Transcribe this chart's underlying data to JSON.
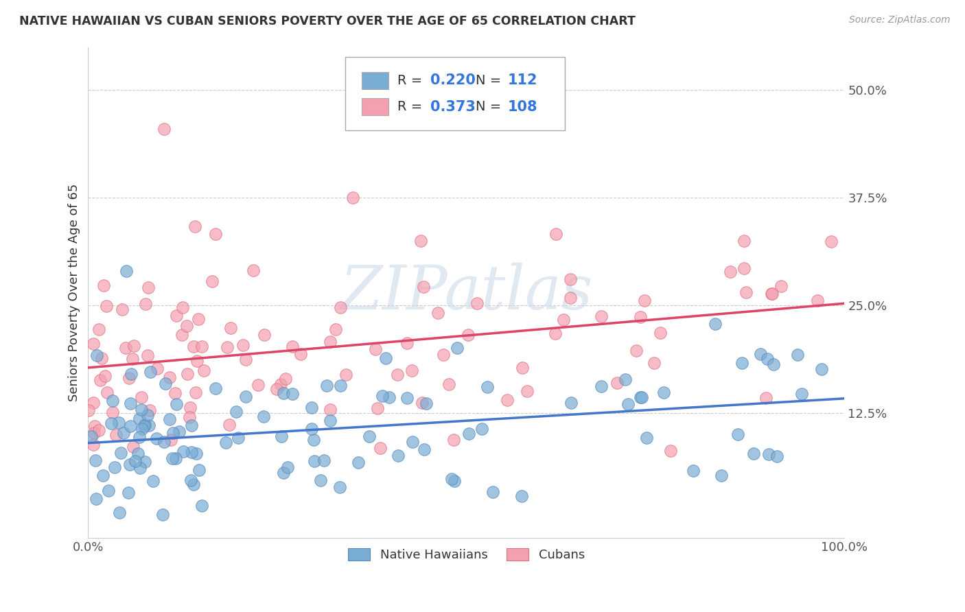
{
  "title": "NATIVE HAWAIIAN VS CUBAN SENIORS POVERTY OVER THE AGE OF 65 CORRELATION CHART",
  "source": "Source: ZipAtlas.com",
  "ylabel": "Seniors Poverty Over the Age of 65",
  "blue_label": "Native Hawaiians",
  "pink_label": "Cubans",
  "blue_R": 0.22,
  "blue_N": 112,
  "pink_R": 0.373,
  "pink_N": 108,
  "xlim": [
    0,
    100
  ],
  "ylim": [
    -2,
    55
  ],
  "yticks": [
    12.5,
    25.0,
    37.5,
    50.0
  ],
  "blue_color": "#7aadd4",
  "blue_edge_color": "#5588bb",
  "pink_color": "#f4a0b0",
  "pink_edge_color": "#e07080",
  "blue_line_color": "#4477cc",
  "pink_line_color": "#dd4466",
  "watermark": "ZIPatlas",
  "grid_color": "#cccccc",
  "title_color": "#333333",
  "tick_color": "#555555",
  "legend_text_color": "#333333",
  "rn_value_color": "#3377dd"
}
